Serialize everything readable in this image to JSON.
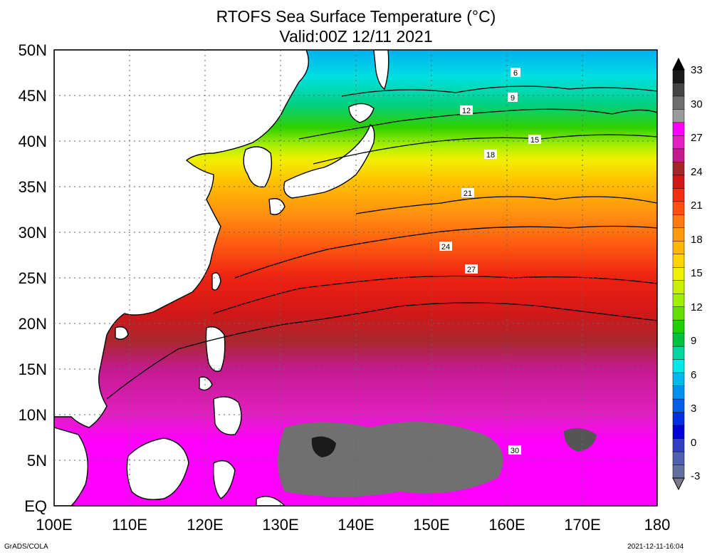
{
  "title": {
    "line1": "RTOFS Sea Surface Temperature (°C)",
    "line2": "Valid:00Z 12/11 2021"
  },
  "axes": {
    "lat_labels": [
      "EQ",
      "5N",
      "10N",
      "15N",
      "20N",
      "25N",
      "30N",
      "35N",
      "40N",
      "45N",
      "50N"
    ],
    "lon_labels": [
      "100E",
      "110E",
      "120E",
      "130E",
      "140E",
      "150E",
      "160E",
      "170E",
      "180"
    ],
    "lat_range": [
      0,
      50
    ],
    "lon_range": [
      100,
      180
    ]
  },
  "colorbar": {
    "ticks": [
      "33",
      "30",
      "27",
      "24",
      "21",
      "18",
      "15",
      "12",
      "9",
      "6",
      "3",
      "0",
      "-3"
    ],
    "colors_top_to_bottom": [
      "#1a1a1a",
      "#444444",
      "#6e6e6e",
      "#9a9a9a",
      "#ff00ff",
      "#e020c0",
      "#c41a90",
      "#a02828",
      "#d01818",
      "#f03010",
      "#ff5010",
      "#ff7a10",
      "#ff9a10",
      "#ffb800",
      "#ffd400",
      "#f0f000",
      "#c8f000",
      "#9ef000",
      "#64e000",
      "#20d000",
      "#00c040",
      "#00d8a0",
      "#00e8e8",
      "#00b8f0",
      "#0090f0",
      "#0060e8",
      "#0030e0",
      "#0000d8",
      "#3040c0",
      "#5060b0",
      "#6070a0"
    ]
  },
  "contour_labels": [
    "6",
    "9",
    "12",
    "15",
    "18",
    "21",
    "24",
    "27",
    "30"
  ],
  "footer": {
    "left": "GrADS/COLA",
    "right": "2021-12-11-16:04"
  },
  "chart_data": {
    "type": "heatmap",
    "variable": "Sea Surface Temperature",
    "unit": "°C",
    "x_range": [
      100,
      180
    ],
    "y_range": [
      0,
      50
    ],
    "contour_interval": 3,
    "zonal_profile_lat_sst": [
      [
        48,
        5
      ],
      [
        45,
        8
      ],
      [
        42,
        12
      ],
      [
        40,
        15
      ],
      [
        38,
        17
      ],
      [
        35,
        20
      ],
      [
        32,
        22
      ],
      [
        28,
        24
      ],
      [
        25,
        26
      ],
      [
        20,
        27.5
      ],
      [
        15,
        28.5
      ],
      [
        10,
        29
      ],
      [
        5,
        30
      ],
      [
        2,
        29.5
      ]
    ]
  }
}
